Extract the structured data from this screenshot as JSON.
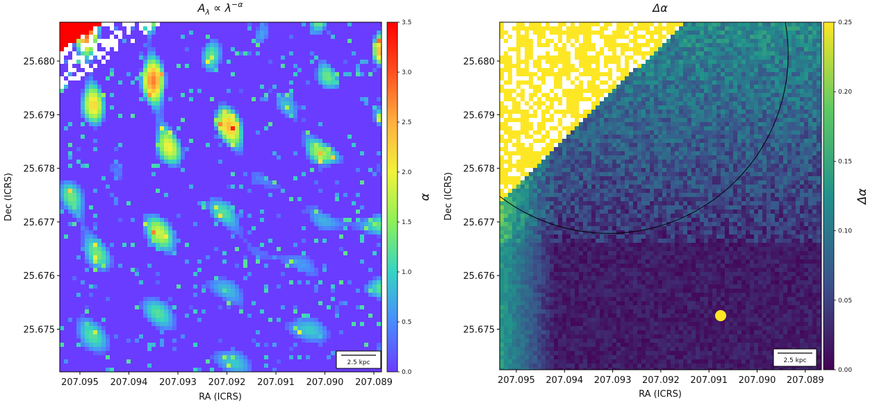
{
  "chart_data": [
    {
      "type": "heatmap",
      "title": "A_λ ∝ λ^{-α}",
      "xlabel": "RA (ICRS)",
      "ylabel": "Dec (ICRS)",
      "x_ticks": [
        "207.095",
        "207.094",
        "207.093",
        "207.092",
        "207.091",
        "207.090",
        "207.089"
      ],
      "y_ticks": [
        "25.680",
        "25.679",
        "25.678",
        "25.677",
        "25.676",
        "25.675"
      ],
      "colorbar": {
        "label": "α",
        "range": [
          0,
          3.5
        ],
        "ticks": [
          "3.5",
          "3.0",
          "2.5",
          "2.0",
          "1.5",
          "1.0",
          "0.5",
          "0.0"
        ],
        "colormap": "rainbow",
        "colors": [
          "#6a3cff",
          "#4a8cff",
          "#36d4c4",
          "#8cf05a",
          "#f2f23a",
          "#ffb040",
          "#ff5020",
          "#ff0000"
        ]
      },
      "scalebar": "2.5 kpc"
    },
    {
      "type": "heatmap",
      "title": "Δα",
      "xlabel": "RA (ICRS)",
      "ylabel": "Dec (ICRS)",
      "x_ticks": [
        "207.095",
        "207.094",
        "207.093",
        "207.092",
        "207.091",
        "207.090",
        "207.089"
      ],
      "y_ticks": [
        "25.680",
        "25.679",
        "25.678",
        "25.677",
        "25.676",
        "25.675"
      ],
      "colorbar": {
        "label": "Δα",
        "range": [
          0,
          0.25
        ],
        "ticks": [
          "0.25",
          "0.20",
          "0.15",
          "0.10",
          "0.05",
          "0.00"
        ],
        "colormap": "viridis",
        "colors": [
          "#440154",
          "#3b528b",
          "#21918c",
          "#5ec962",
          "#fde725"
        ]
      },
      "scalebar": "2.5 kpc"
    }
  ]
}
